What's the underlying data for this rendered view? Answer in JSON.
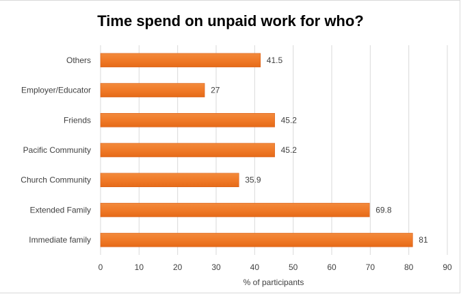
{
  "chart_data": {
    "type": "bar",
    "orientation": "horizontal",
    "title": "Time spend on unpaid work for who?",
    "xlabel": "% of participants",
    "ylabel": "",
    "categories": [
      "Immediate family",
      "Extended Family",
      "Church Community",
      "Pacific Community",
      "Friends",
      "Employer/Educator",
      "Others"
    ],
    "values": [
      81,
      69.8,
      35.9,
      45.2,
      45.2,
      27,
      41.5
    ],
    "data_labels": [
      "81",
      "69.8",
      "35.9",
      "45.2",
      "45.2",
      "27",
      "41.5"
    ],
    "xlim": [
      0,
      90
    ],
    "xticks": [
      0,
      10,
      20,
      30,
      40,
      50,
      60,
      70,
      80,
      90
    ],
    "xtick_labels": [
      "0",
      "10",
      "20",
      "30",
      "40",
      "50",
      "60",
      "70",
      "80",
      "90"
    ],
    "grid": "vertical",
    "legend": "none",
    "colors": {
      "bar_fill": "#f07a28",
      "bar_edge": "#d9601a",
      "grid": "#d9d9d9",
      "text": "#404040"
    }
  }
}
